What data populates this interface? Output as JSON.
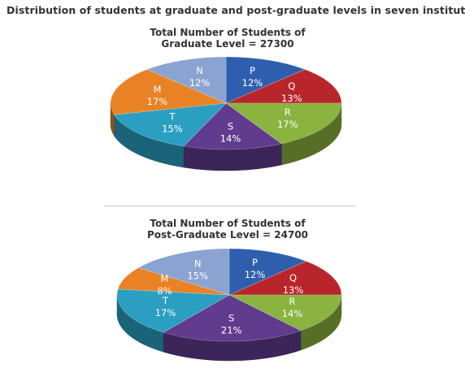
{
  "title": "Distribution of students at graduate and post-graduate levels in seven institutes:",
  "chart_data": [
    {
      "type": "pie",
      "title_line1": "Total Number of Students of",
      "title_line2": "Graduate Level = 27300",
      "categories": [
        "P",
        "Q",
        "R",
        "S",
        "T",
        "M",
        "N"
      ],
      "values": [
        12,
        13,
        17,
        14,
        15,
        17,
        12
      ],
      "value_labels": [
        "12%",
        "13%",
        "17%",
        "14%",
        "15%",
        "17%",
        "12%"
      ],
      "colors": [
        "#2e5fae",
        "#b8262b",
        "#8ab33f",
        "#603b8e",
        "#2a9fc2",
        "#e98225",
        "#8aa3d0"
      ]
    },
    {
      "type": "pie",
      "title_line1": "Total Number of Students of",
      "title_line2": "Post-Graduate Level = 24700",
      "categories": [
        "P",
        "Q",
        "R",
        "S",
        "T",
        "M",
        "N"
      ],
      "values": [
        12,
        13,
        14,
        21,
        17,
        8,
        15
      ],
      "value_labels": [
        "12%",
        "13%",
        "14%",
        "21%",
        "17%",
        "8%",
        "15%"
      ],
      "colors": [
        "#2e5fae",
        "#b8262b",
        "#8ab33f",
        "#603b8e",
        "#2a9fc2",
        "#e98225",
        "#8aa3d0"
      ]
    }
  ]
}
